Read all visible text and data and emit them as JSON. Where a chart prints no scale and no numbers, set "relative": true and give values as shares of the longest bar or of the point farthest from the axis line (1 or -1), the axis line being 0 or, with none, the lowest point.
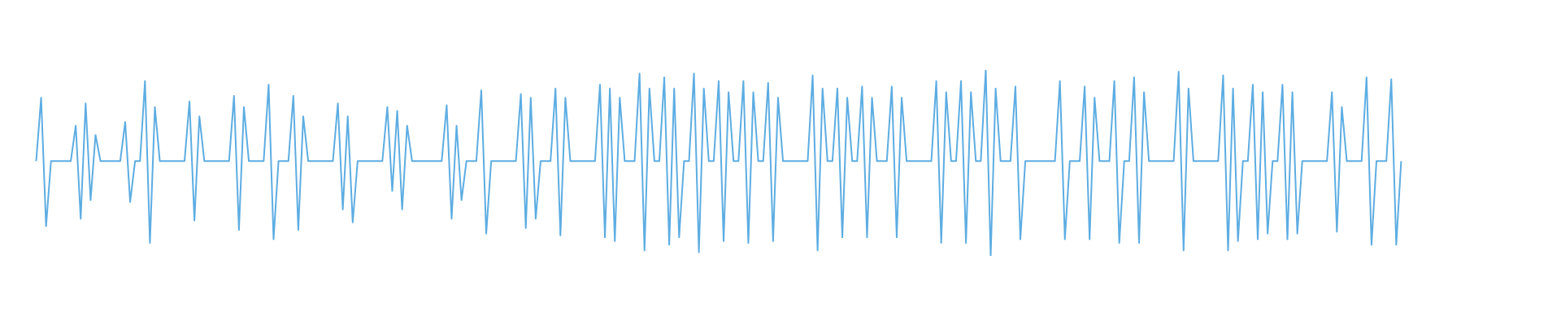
{
  "chart_data": {
    "type": "line",
    "relative": true,
    "color": "#5dade2",
    "marker": "none",
    "categories": [
      null,
      null,
      null,
      null,
      null,
      null,
      null,
      null,
      null,
      null,
      null,
      null,
      null,
      null,
      null,
      null,
      null,
      null,
      null,
      null,
      null,
      null,
      null,
      null,
      null,
      null,
      null,
      null,
      null,
      null,
      null,
      null,
      null,
      null,
      null,
      null,
      null,
      null,
      null,
      null,
      null,
      null,
      null,
      null,
      null,
      null,
      null,
      null,
      null,
      null,
      null,
      null,
      null,
      null,
      null,
      null,
      null,
      null,
      null,
      null,
      null,
      null,
      null,
      null,
      null,
      null,
      null,
      null,
      null,
      null,
      null,
      null,
      null,
      null,
      null,
      null,
      null,
      null,
      null,
      null,
      null,
      null,
      null,
      null,
      null,
      null,
      null,
      null,
      null,
      null,
      null,
      null,
      null,
      null,
      null,
      null,
      null,
      null,
      null,
      null,
      null,
      null,
      null,
      null,
      null,
      null,
      null,
      null,
      null,
      null,
      null,
      null,
      null,
      null,
      null,
      null,
      null,
      null,
      null,
      null,
      null,
      null,
      null,
      null,
      null,
      null,
      null,
      null,
      null,
      null,
      null,
      null,
      null,
      null,
      null,
      null,
      null,
      null,
      null,
      null,
      null,
      null,
      null,
      null,
      null,
      null,
      null,
      null,
      null,
      null,
      null,
      null,
      null,
      null,
      null,
      null,
      null,
      null,
      null,
      null,
      null,
      null,
      null,
      null,
      null,
      null,
      null,
      null,
      null,
      null,
      null,
      null,
      null,
      null,
      null,
      null,
      null,
      null,
      null,
      null,
      null,
      null,
      null,
      null,
      null,
      null,
      null,
      null,
      null,
      null,
      null,
      null,
      null,
      null,
      null,
      null,
      null,
      null,
      null,
      null,
      null,
      null,
      null,
      null,
      null,
      null,
      null,
      null,
      null,
      null,
      null,
      null,
      null,
      null,
      null,
      null,
      null,
      null,
      null,
      null,
      null,
      null,
      null,
      null,
      null,
      null,
      null,
      null,
      null,
      null,
      null,
      null,
      null,
      null,
      null,
      null,
      null,
      null,
      null,
      null,
      null,
      null,
      null,
      null,
      null,
      null,
      null,
      null,
      null,
      null,
      null,
      null,
      null,
      null,
      null,
      null,
      null,
      null,
      null,
      null,
      null,
      null,
      null,
      null,
      null,
      null,
      null,
      null,
      null,
      null,
      null,
      null,
      null,
      null,
      null,
      null,
      null,
      null,
      null,
      null,
      null,
      null,
      null,
      null,
      null,
      null,
      null,
      null,
      null,
      null,
      null,
      null,
      null,
      null,
      null,
      null,
      null,
      null,
      null,
      null,
      null,
      null,
      null,
      null,
      null,
      null,
      null,
      null,
      null,
      null,
      null,
      null,
      null,
      null
    ],
    "values": [
      null,
      null,
      null,
      null,
      null,
      null,
      0.51,
      0.85,
      0.16,
      0.51,
      null,
      null,
      null,
      0.51,
      0.7,
      0.2,
      0.82,
      0.3,
      0.65,
      0.51,
      null,
      null,
      null,
      0.51,
      0.72,
      0.29,
      0.51,
      0.51,
      0.94,
      0.07,
      0.8,
      0.51,
      null,
      null,
      null,
      null,
      0.51,
      0.83,
      0.19,
      0.75,
      0.51,
      null,
      null,
      null,
      null,
      0.51,
      0.86,
      0.14,
      0.8,
      0.51,
      null,
      null,
      0.51,
      0.92,
      0.09,
      0.51,
      null,
      0.51,
      0.86,
      0.14,
      0.75,
      0.51,
      null,
      null,
      null,
      null,
      0.51,
      0.82,
      0.25,
      0.75,
      0.18,
      0.51,
      null,
      null,
      null,
      null,
      0.51,
      0.8,
      0.35,
      0.78,
      0.25,
      0.7,
      0.51,
      null,
      null,
      null,
      null,
      null,
      0.51,
      0.81,
      0.2,
      0.7,
      0.3,
      0.51,
      null,
      0.51,
      0.89,
      0.12,
      0.51,
      null,
      null,
      null,
      null,
      0.51,
      0.87,
      0.15,
      0.85,
      0.2,
      0.51,
      null,
      0.51,
      0.9,
      0.11,
      0.85,
      0.51,
      null,
      null,
      null,
      null,
      0.51,
      0.92,
      0.1,
      0.9,
      0.08,
      0.85,
      0.51,
      null,
      0.51,
      0.98,
      0.03,
      0.9,
      0.51,
      0.51,
      0.96,
      0.06,
      0.9,
      0.1,
      0.51,
      0.51,
      0.98,
      0.02,
      0.9,
      0.51,
      0.51,
      0.94,
      0.08,
      0.88,
      0.51,
      0.51,
      0.94,
      0.07,
      0.88,
      0.51,
      0.51,
      0.93,
      0.08,
      0.85,
      0.51,
      null,
      null,
      null,
      null,
      0.51,
      0.97,
      0.03,
      0.9,
      0.51,
      0.51,
      0.9,
      0.1,
      0.85,
      0.51,
      0.51,
      0.91,
      0.1,
      0.85,
      0.51,
      null,
      0.51,
      0.91,
      0.1,
      0.85,
      0.51,
      null,
      null,
      null,
      null,
      0.51,
      0.94,
      0.07,
      0.88,
      0.51,
      0.51,
      0.94,
      0.07,
      0.88,
      0.51,
      0.51,
      1,
      0,
      0.9,
      0.51,
      null,
      0.51,
      0.91,
      0.09,
      0.51,
      null,
      null,
      null,
      null,
      null,
      0.51,
      0.94,
      0.09,
      0.51,
      null,
      0.51,
      0.91,
      0.09,
      0.85,
      0.51,
      null,
      0.51,
      0.94,
      0.07,
      0.51,
      0.51,
      0.96,
      0.07,
      0.88,
      0.51,
      null,
      null,
      null,
      null,
      0.51,
      0.99,
      0.03,
      0.9,
      0.51,
      null,
      null,
      null,
      null,
      0.51,
      0.97,
      0.03,
      0.9,
      0.08,
      0.51,
      0.51,
      0.92,
      0.09,
      0.88,
      0.12,
      0.51,
      0.51,
      0.92,
      0.09,
      0.88,
      0.12,
      0.51,
      null,
      null,
      null,
      null,
      0.51,
      0.88,
      0.13,
      0.8,
      0.51,
      null,
      null,
      0.51,
      0.96,
      0.06,
      0.51,
      null,
      0.51,
      0.95,
      0.06,
      0.51,
      null,
      null,
      null,
      null,
      null,
      null,
      null,
      null,
      null,
      null,
      null,
      null,
      null,
      null,
      null,
      null,
      null,
      null,
      null,
      null,
      null,
      null,
      null,
      null,
      null,
      null,
      null,
      null,
      null,
      null,
      null
    ]
  }
}
